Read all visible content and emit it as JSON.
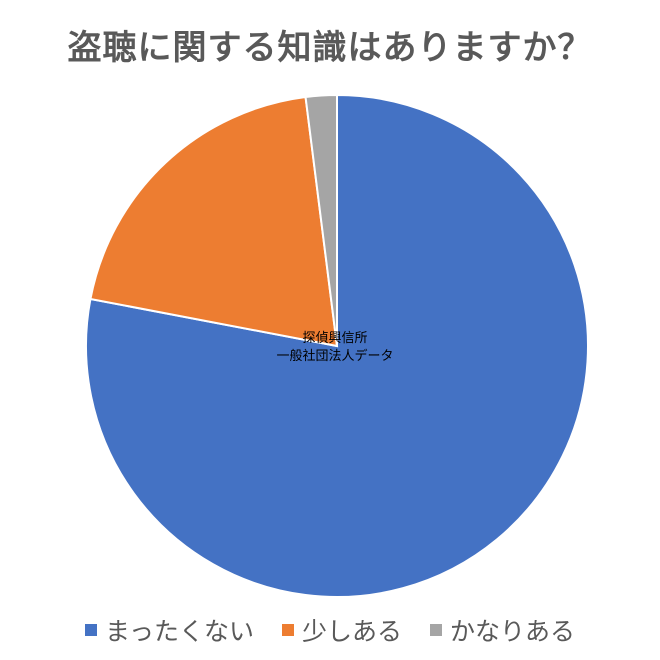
{
  "chart_data": {
    "type": "pie",
    "title": "盗聴に関する知識はありますか？",
    "annotation": [
      "探偵興信所",
      "一般社団法人データ"
    ],
    "start_angle_deg": 0,
    "direction": "clockwise",
    "legend_position": "bottom",
    "series": [
      {
        "name": "まったくない",
        "value": 78,
        "color": "#4472C4"
      },
      {
        "name": "少しある",
        "value": 20,
        "color": "#ED7D31"
      },
      {
        "name": "かなりある",
        "value": 2,
        "color": "#A5A5A5"
      }
    ]
  }
}
